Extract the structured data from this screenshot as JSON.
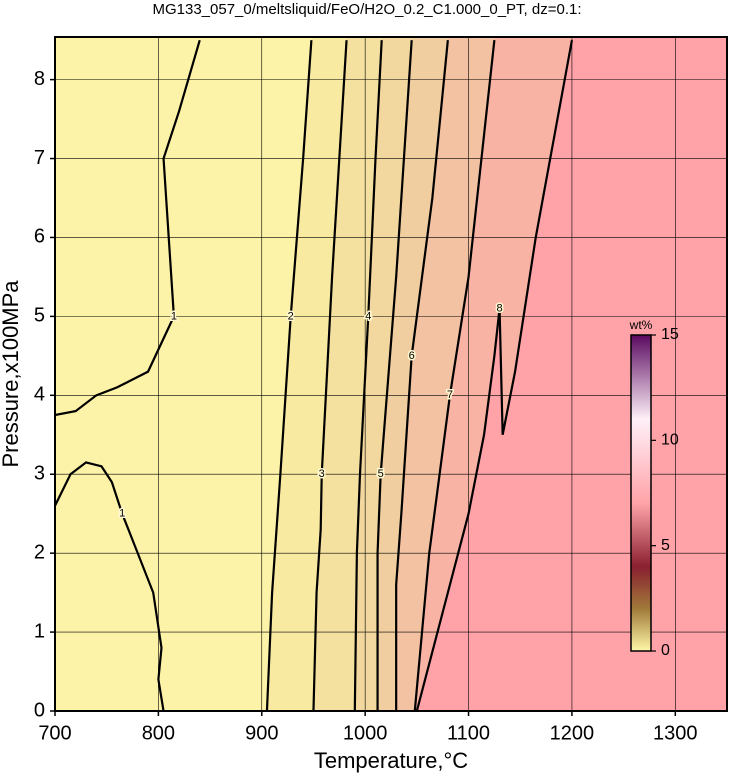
{
  "chart_data": {
    "type": "contour",
    "title": "MG133_057_0/meltsliquid/FeO/H2O_0.2_C1.000_0_PT, dz=0.1:",
    "x_label": "Temperature,°C",
    "y_label": "Pressure,x100MPa",
    "xlim": [
      700,
      1350
    ],
    "ylim": [
      0,
      8.54
    ],
    "xticks": [
      700,
      800,
      900,
      1000,
      1100,
      1200,
      1300
    ],
    "yticks": [
      0,
      1,
      2,
      3,
      4,
      5,
      6,
      7,
      8
    ],
    "grid": true,
    "background": "#fdf3a8",
    "series": [
      {
        "level": 1,
        "color": "#fdf3a8",
        "x": [
          700,
          715,
          730,
          745,
          755,
          765,
          780,
          795,
          803,
          800,
          805,
          null,
          700,
          720,
          740,
          760,
          790,
          815,
          810,
          805,
          820,
          840
        ],
        "y": [
          2.6,
          3.0,
          3.15,
          3.1,
          2.9,
          2.5,
          2.0,
          1.5,
          0.8,
          0.4,
          0,
          null,
          3.75,
          3.8,
          4.0,
          4.1,
          4.3,
          5.0,
          6.0,
          7.0,
          7.6,
          8.5
        ]
      },
      {
        "level": 2,
        "color": "#f9eaa2",
        "x": [
          905,
          910,
          918,
          928,
          940,
          948
        ],
        "y": [
          0,
          1.5,
          3.0,
          5.0,
          7.0,
          8.5
        ]
      },
      {
        "level": 3,
        "color": "#f5e19f",
        "x": [
          950,
          953,
          957,
          958,
          962,
          968,
          982
        ],
        "y": [
          0,
          1.5,
          2.3,
          3.0,
          4.0,
          5.5,
          8.5
        ]
      },
      {
        "level": 4,
        "color": "#f2d89e",
        "x": [
          990,
          992,
          995,
          1003,
          1010,
          1016
        ],
        "y": [
          0,
          2.0,
          3.0,
          5.0,
          7.0,
          8.5
        ]
      },
      {
        "level": 5,
        "color": "#f0cea0",
        "x": [
          1012,
          1012,
          1015,
          1030,
          1045
        ],
        "y": [
          0,
          2.0,
          3.0,
          5.5,
          8.5
        ]
      },
      {
        "level": 6,
        "color": "#f3c2a2",
        "x": [
          1030,
          1030,
          1035,
          1045,
          1065,
          1080
        ],
        "y": [
          0,
          1.6,
          2.5,
          4.5,
          6.5,
          8.5
        ]
      },
      {
        "level": 7,
        "color": "#f8b3a5",
        "x": [
          1048,
          1062,
          1082,
          1100,
          1125
        ],
        "y": [
          0,
          2.0,
          4.0,
          5.5,
          8.5
        ]
      },
      {
        "level": 8,
        "color": "#ffa3a8",
        "x": [
          1050,
          1080,
          1100,
          1115,
          1125,
          1130,
          1133,
          1145,
          1165,
          1200
        ],
        "y": [
          0,
          1.5,
          2.5,
          3.5,
          4.5,
          5.1,
          3.5,
          4.3,
          6.0,
          8.5
        ]
      }
    ],
    "colorbar": {
      "label": "wt%",
      "lim": [
        0,
        15
      ],
      "ticks": [
        0,
        5,
        10,
        15
      ],
      "stops": [
        [
          0,
          "#fff7a8"
        ],
        [
          2,
          "#a07a3a"
        ],
        [
          4,
          "#8a2030"
        ],
        [
          7,
          "#ffa3a8"
        ],
        [
          11,
          "#fff0f8"
        ],
        [
          15,
          "#5a0a60"
        ]
      ]
    }
  }
}
